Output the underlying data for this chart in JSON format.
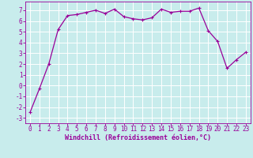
{
  "x": [
    0,
    1,
    2,
    3,
    4,
    5,
    6,
    7,
    8,
    9,
    10,
    11,
    12,
    13,
    14,
    15,
    16,
    17,
    18,
    19,
    20,
    21,
    22,
    23
  ],
  "y": [
    -2.5,
    -0.3,
    2.0,
    5.2,
    6.5,
    6.6,
    6.8,
    7.0,
    6.7,
    7.1,
    6.4,
    6.2,
    6.1,
    6.3,
    7.1,
    6.8,
    6.9,
    6.9,
    7.2,
    5.1,
    4.1,
    1.6,
    2.4,
    3.1
  ],
  "line_color": "#990099",
  "marker": "+",
  "marker_size": 3.5,
  "marker_lw": 0.8,
  "bg_color": "#c8ecec",
  "grid_color": "#b0d8d8",
  "xlabel": "Windchill (Refroidissement éolien,°C)",
  "xlim": [
    -0.5,
    23.5
  ],
  "ylim": [
    -3.5,
    7.8
  ],
  "yticks": [
    -3,
    -2,
    -1,
    0,
    1,
    2,
    3,
    4,
    5,
    6,
    7
  ],
  "xticks": [
    0,
    1,
    2,
    3,
    4,
    5,
    6,
    7,
    8,
    9,
    10,
    11,
    12,
    13,
    14,
    15,
    16,
    17,
    18,
    19,
    20,
    21,
    22,
    23
  ],
  "tick_color": "#990099",
  "label_color": "#990099",
  "label_fontsize": 6.0,
  "tick_fontsize": 5.5,
  "line_width": 0.9
}
